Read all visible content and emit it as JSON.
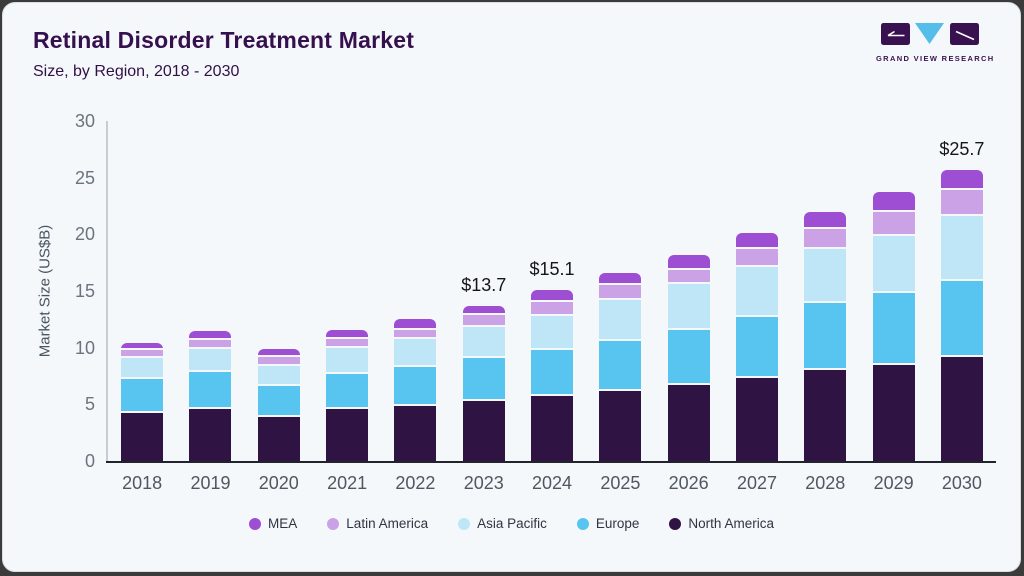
{
  "header": {
    "title": "Retinal Disorder Treatment Market",
    "subtitle": "Size, by Region, 2018 - 2030"
  },
  "logo": {
    "caption": "GRAND VIEW RESEARCH",
    "mark_colors": {
      "blocks": "#3a1150",
      "triangle": "#55bde9"
    }
  },
  "chart_data": {
    "type": "bar",
    "stacked": true,
    "title": "Retinal Disorder Treatment Market Size, by Region, 2018 - 2030",
    "categories": [
      "2018",
      "2019",
      "2020",
      "2021",
      "2022",
      "2023",
      "2024",
      "2025",
      "2026",
      "2027",
      "2028",
      "2029",
      "2030"
    ],
    "series": [
      {
        "name": "North America",
        "color": "#2e1343",
        "values": [
          4.2,
          4.6,
          3.9,
          4.6,
          4.9,
          5.3,
          5.7,
          6.2,
          6.7,
          7.3,
          8.0,
          8.5,
          9.2
        ]
      },
      {
        "name": "Europe",
        "color": "#57c5f0",
        "values": [
          3.0,
          3.3,
          2.7,
          3.1,
          3.4,
          3.8,
          4.1,
          4.4,
          4.9,
          5.4,
          5.9,
          6.3,
          6.7
        ]
      },
      {
        "name": "Asia Pacific",
        "color": "#bee6f7",
        "values": [
          1.9,
          2.0,
          1.8,
          2.3,
          2.5,
          2.7,
          3.0,
          3.6,
          4.0,
          4.4,
          4.8,
          5.1,
          5.7
        ]
      },
      {
        "name": "Latin America",
        "color": "#cba2e6",
        "values": [
          0.7,
          0.8,
          0.8,
          0.8,
          0.8,
          1.1,
          1.2,
          1.3,
          1.3,
          1.6,
          1.8,
          2.1,
          2.3
        ]
      },
      {
        "name": "MEA",
        "color": "#9d4ed2",
        "values": [
          0.6,
          0.8,
          0.7,
          0.8,
          0.9,
          0.8,
          1.1,
          1.1,
          1.3,
          1.4,
          1.5,
          1.7,
          1.8
        ]
      }
    ],
    "totals": [
      10.4,
      11.5,
      9.9,
      11.6,
      12.5,
      13.7,
      15.1,
      16.6,
      18.2,
      20.1,
      22.0,
      23.7,
      25.7
    ],
    "bar_labels": [
      "",
      "",
      "",
      "",
      "",
      "$13.7",
      "$15.1",
      "",
      "",
      "",
      "",
      "",
      "$25.7"
    ],
    "xlabel": "",
    "ylabel": "Market Size (US$B)",
    "ylim": [
      0,
      30
    ],
    "yticks": [
      0,
      5,
      10,
      15,
      20,
      25,
      30
    ],
    "grid": false,
    "legend_position": "bottom",
    "legend_order": [
      "MEA",
      "Latin America",
      "Asia Pacific",
      "Europe",
      "North America"
    ]
  }
}
